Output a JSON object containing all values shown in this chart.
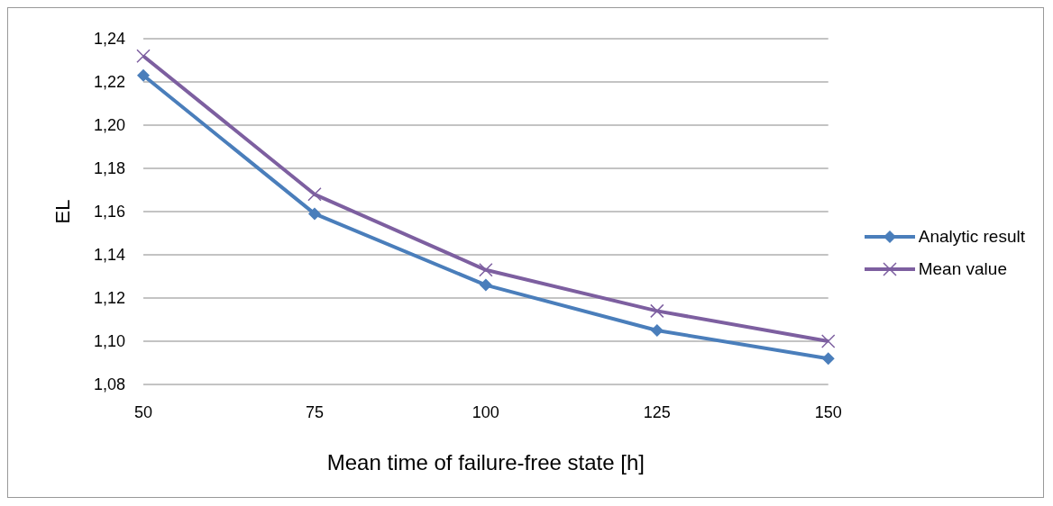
{
  "chart_data": {
    "type": "line",
    "xlabel": "Mean time of failure-free state [h]",
    "ylabel": "EL",
    "x": [
      50,
      75,
      100,
      125,
      150
    ],
    "series": [
      {
        "name": "Analytic result",
        "color": "#4a7ebb",
        "marker": "diamond",
        "values": [
          1.223,
          1.159,
          1.126,
          1.105,
          1.092
        ]
      },
      {
        "name": "Mean value",
        "color": "#7d5fa0",
        "marker": "cross",
        "values": [
          1.232,
          1.168,
          1.133,
          1.114,
          1.1
        ]
      }
    ],
    "xlim": [
      50,
      150
    ],
    "xticks": [
      50,
      75,
      100,
      125,
      150
    ],
    "ylim": [
      1.08,
      1.24
    ],
    "yticks": [
      {
        "value": 1.08,
        "label": "1,08"
      },
      {
        "value": 1.1,
        "label": "1,10"
      },
      {
        "value": 1.12,
        "label": "1,12"
      },
      {
        "value": 1.14,
        "label": "1,14"
      },
      {
        "value": 1.16,
        "label": "1,16"
      },
      {
        "value": 1.18,
        "label": "1,18"
      },
      {
        "value": 1.2,
        "label": "1,20"
      },
      {
        "value": 1.22,
        "label": "1,22"
      },
      {
        "value": 1.24,
        "label": "1,24"
      }
    ],
    "grid": "y",
    "legend": "right",
    "line_style": "solid"
  }
}
